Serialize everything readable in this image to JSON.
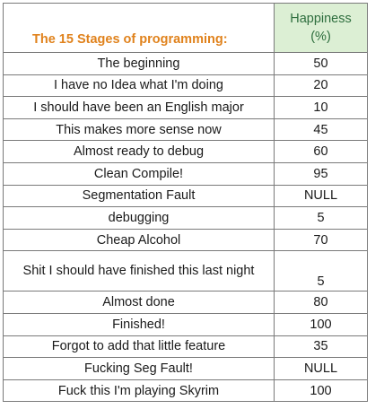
{
  "header": {
    "title": "The 15 Stages of programming:",
    "happiness_label": "Happiness",
    "happiness_unit": "(%)"
  },
  "rows": [
    {
      "stage": "The beginning",
      "happiness": "50"
    },
    {
      "stage": "I have no Idea what I'm doing",
      "happiness": "20"
    },
    {
      "stage": "I should have been an English major",
      "happiness": "10"
    },
    {
      "stage": "This makes more sense now",
      "happiness": "45"
    },
    {
      "stage": "Almost ready to debug",
      "happiness": "60"
    },
    {
      "stage": "Clean Compile!",
      "happiness": "95"
    },
    {
      "stage": "Segmentation Fault",
      "happiness": "NULL"
    },
    {
      "stage": "debugging",
      "happiness": "5"
    },
    {
      "stage": "Cheap Alcohol",
      "happiness": "70"
    },
    {
      "stage": "Shit I should have finished this last night",
      "happiness": "5"
    },
    {
      "stage": "Almost done",
      "happiness": "80"
    },
    {
      "stage": "Finished!",
      "happiness": "100"
    },
    {
      "stage": "Forgot to add that little feature",
      "happiness": "35"
    },
    {
      "stage": "Fucking Seg Fault!",
      "happiness": "NULL"
    },
    {
      "stage": "Fuck this I'm playing Skyrim",
      "happiness": "100"
    }
  ],
  "colors": {
    "title": "#e0821c",
    "header_fill": "#dcefd4",
    "header_text": "#2e6e3e",
    "grid": "#7a7a7a"
  }
}
